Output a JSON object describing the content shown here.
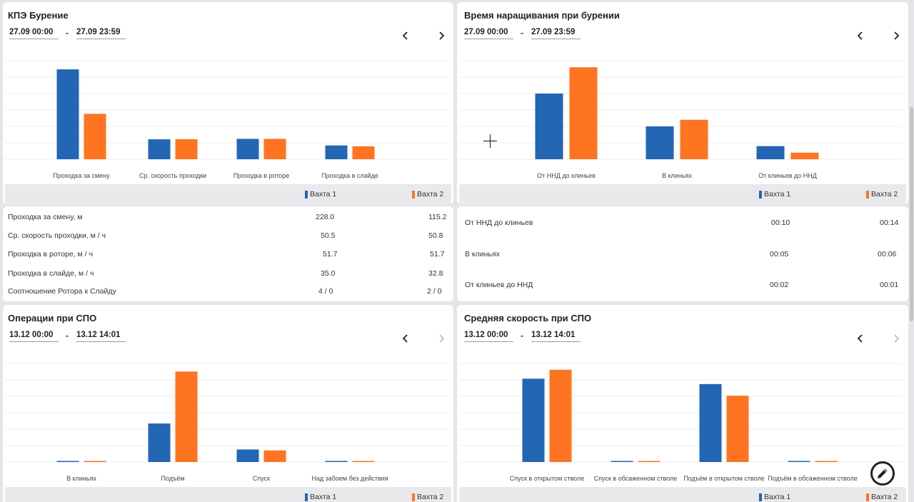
{
  "colors": {
    "shift1": "#2266b4",
    "shift2": "#ff7420",
    "grid": "#eceef2"
  },
  "cards": [
    {
      "id": "kpe",
      "title": "КПЭ Бурение",
      "date_from": "27.09 00:00",
      "date_sep": "-",
      "date_to": "27.09 23:59",
      "next_enabled": true,
      "legend": [
        "Вахта 1",
        "Вахта 2"
      ],
      "chart_data": {
        "type": "bar",
        "categories": [
          "Проходка за смену",
          "Ср. скорость проходки",
          "Проходка в роторе",
          "Проходка в слайде"
        ],
        "series": [
          {
            "name": "Вахта 1",
            "values": [
              228.0,
              50.5,
              51.7,
              35.0
            ]
          },
          {
            "name": "Вахта 2",
            "values": [
              115.2,
              50.8,
              51.7,
              32.8
            ]
          }
        ],
        "ylim": [
          0,
          250
        ],
        "grid": true
      },
      "table": [
        {
          "label": "Проходка за смену, м",
          "v1": "228.0",
          "v2": "115.2"
        },
        {
          "label": "Ср. скорость проходки, м / ч",
          "v1": "50.5",
          "v2": "50.8"
        },
        {
          "label": "Проходка в роторе, м / ч",
          "v1": "51.7",
          "v2": "51.7"
        },
        {
          "label": "Проходка в слайде, м / ч",
          "v1": "35.0",
          "v2": "32.8"
        },
        {
          "label": "Соотношение Ротора к Слайду",
          "v1": "4 / 0",
          "v2": "2 / 0"
        }
      ]
    },
    {
      "id": "connections",
      "title": "Время наращивания при бурении",
      "date_from": "27.09 00:00",
      "date_sep": "-",
      "date_to": "27.09 23:59",
      "next_enabled": true,
      "legend": [
        "Вахта 1",
        "Вахта 2"
      ],
      "chart_data": {
        "type": "bar",
        "categories": [
          "От ННД до клиньев",
          "В клиньях",
          "От клиньев до ННД"
        ],
        "series": [
          {
            "name": "Вахта 1",
            "values": [
              10,
              5,
              2
            ]
          },
          {
            "name": "Вахта 2",
            "values": [
              14,
              6,
              1
            ]
          }
        ],
        "ylim": [
          0,
          15
        ],
        "grid": true
      },
      "table": [
        {
          "label": "От ННД до клиньев",
          "v1": "00:10",
          "v2": "00:14"
        },
        {
          "label": "В клиньях",
          "v1": "00:05",
          "v2": "00:06"
        },
        {
          "label": "От клиньев до ННД",
          "v1": "00:02",
          "v2": "00:01"
        }
      ]
    },
    {
      "id": "tripping-ops",
      "title": "Операции при СПО",
      "date_from": "13.12 00:00",
      "date_sep": "-",
      "date_to": "13.12 14:01",
      "next_enabled": false,
      "legend": [
        "Вахта 1",
        "Вахта 2"
      ],
      "chart_data": {
        "type": "bar",
        "categories": [
          "В клиньях",
          "Подъём",
          "Спуск",
          "Над забоем без действия"
        ],
        "series": [
          {
            "name": "Вахта 1",
            "values": [
              0.1,
              4.3,
              1.4,
              0.1
            ]
          },
          {
            "name": "Вахта 2",
            "values": [
              0.1,
              10.1,
              1.3,
              0.1
            ]
          }
        ],
        "ylim": [
          0,
          11
        ],
        "grid": true
      }
    },
    {
      "id": "tripping-speed",
      "title": "Средняя скорость при СПО",
      "date_from": "13.12 00:00",
      "date_sep": "-",
      "date_to": "13.12 14:01",
      "next_enabled": false,
      "legend": [
        "Вахта 1",
        "Вахта 2"
      ],
      "chart_data": {
        "type": "bar",
        "categories": [
          "Спуск в открытом стволе",
          "Спуск в обсаженном стволе",
          "Подъём в открытом стволе",
          "Подъём в обсаженном стволе"
        ],
        "series": [
          {
            "name": "Вахта 1",
            "values": [
              465,
              2,
              435,
              2
            ]
          },
          {
            "name": "Вахта 2",
            "values": [
              515,
              2,
              370,
              2
            ]
          }
        ],
        "ylim": [
          0,
          550
        ],
        "grid": true
      }
    }
  ]
}
